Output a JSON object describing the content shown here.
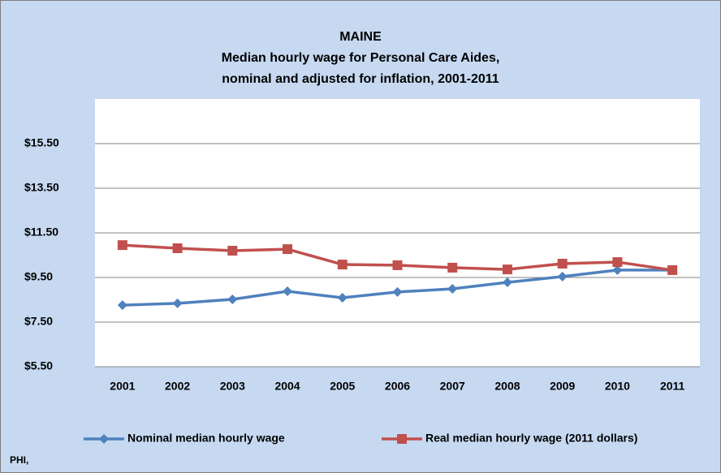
{
  "chart_data": {
    "type": "line",
    "title": [
      "MAINE",
      "Median hourly wage for Personal Care Aides,",
      "nominal and adjusted for inflation, 2001-2011"
    ],
    "footnote": "PHI,",
    "categories": [
      "2001",
      "2002",
      "2003",
      "2004",
      "2005",
      "2006",
      "2007",
      "2008",
      "2009",
      "2010",
      "2011"
    ],
    "series": [
      {
        "name": "Nominal median hourly wage",
        "color": "#4f81bd",
        "marker": "diamond",
        "values": [
          8.26,
          8.34,
          8.52,
          8.88,
          8.59,
          8.85,
          8.99,
          9.28,
          9.54,
          9.83,
          9.83
        ]
      },
      {
        "name": "Real median hourly wage (2011 dollars)",
        "color": "#c0504d",
        "marker": "square",
        "values": [
          10.95,
          10.81,
          10.7,
          10.77,
          10.08,
          10.05,
          9.94,
          9.86,
          10.12,
          10.19,
          9.83
        ]
      }
    ],
    "ylim": [
      5.5,
      17.5
    ],
    "yticks": [
      {
        "value": 5.5,
        "label": "$5.50"
      },
      {
        "value": 7.5,
        "label": "$7.50"
      },
      {
        "value": 9.5,
        "label": "$9.50"
      },
      {
        "value": 11.5,
        "label": "$11.50"
      },
      {
        "value": 13.5,
        "label": "$13.50"
      },
      {
        "value": 15.5,
        "label": "$15.50"
      }
    ],
    "grid": true,
    "legend": "bottom"
  }
}
